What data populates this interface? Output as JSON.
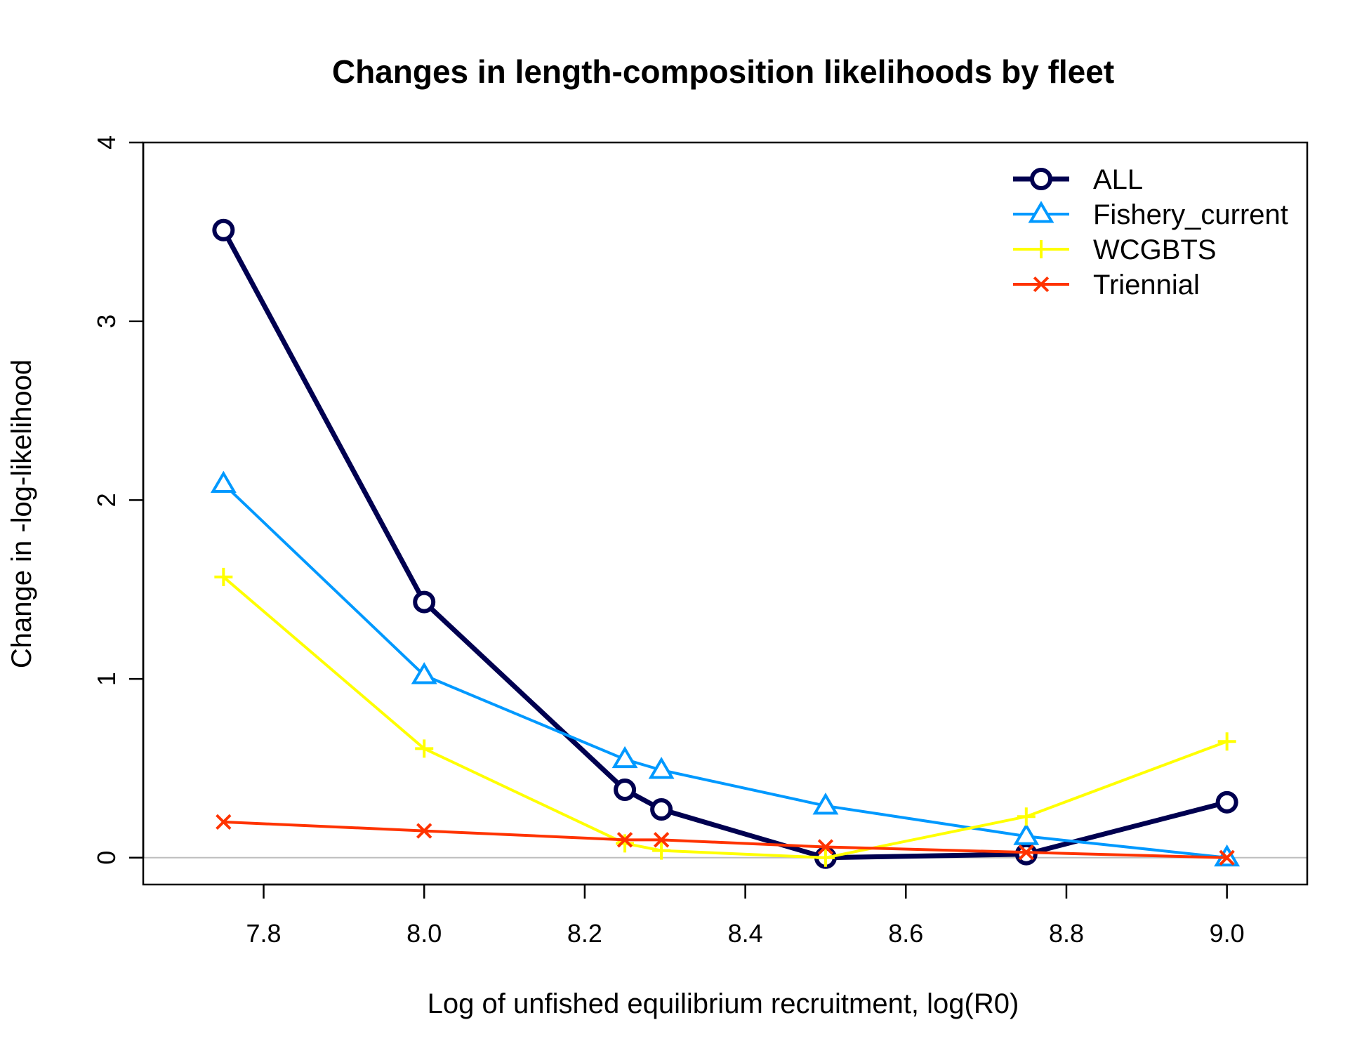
{
  "chart_data": {
    "type": "line",
    "title": "Changes in length-composition likelihoods by fleet",
    "xlabel": "Log of unfished equilibrium recruitment, log(R0)",
    "ylabel": "Change in -log-likelihood",
    "xlim": [
      7.65,
      9.1
    ],
    "ylim": [
      -0.15,
      4.0
    ],
    "xticks": [
      "7.8",
      "8.0",
      "8.2",
      "8.4",
      "8.6",
      "8.8",
      "9.0"
    ],
    "yticks": [
      "0",
      "1",
      "2",
      "3",
      "4"
    ],
    "reference_line": 0,
    "legend_position": "top-right",
    "x": [
      7.75,
      8.0,
      8.25,
      8.2955,
      8.5,
      8.75,
      9.0
    ],
    "series": [
      {
        "name": "ALL",
        "color": "#000050",
        "marker": "circle",
        "values": [
          3.51,
          1.43,
          0.38,
          0.27,
          0.0,
          0.02,
          0.31
        ]
      },
      {
        "name": "Fishery_current",
        "color": "#0099ff",
        "marker": "triangle",
        "values": [
          2.09,
          1.02,
          0.55,
          0.49,
          0.29,
          0.12,
          0.0
        ]
      },
      {
        "name": "WCGBTS",
        "color": "#ffff00",
        "marker": "plus",
        "values": [
          1.57,
          0.61,
          0.08,
          0.04,
          0.0,
          0.23,
          0.65
        ]
      },
      {
        "name": "Triennial",
        "color": "#ff3300",
        "marker": "x",
        "values": [
          0.2,
          0.15,
          0.1,
          0.1,
          0.06,
          0.03,
          0.0
        ]
      }
    ]
  }
}
